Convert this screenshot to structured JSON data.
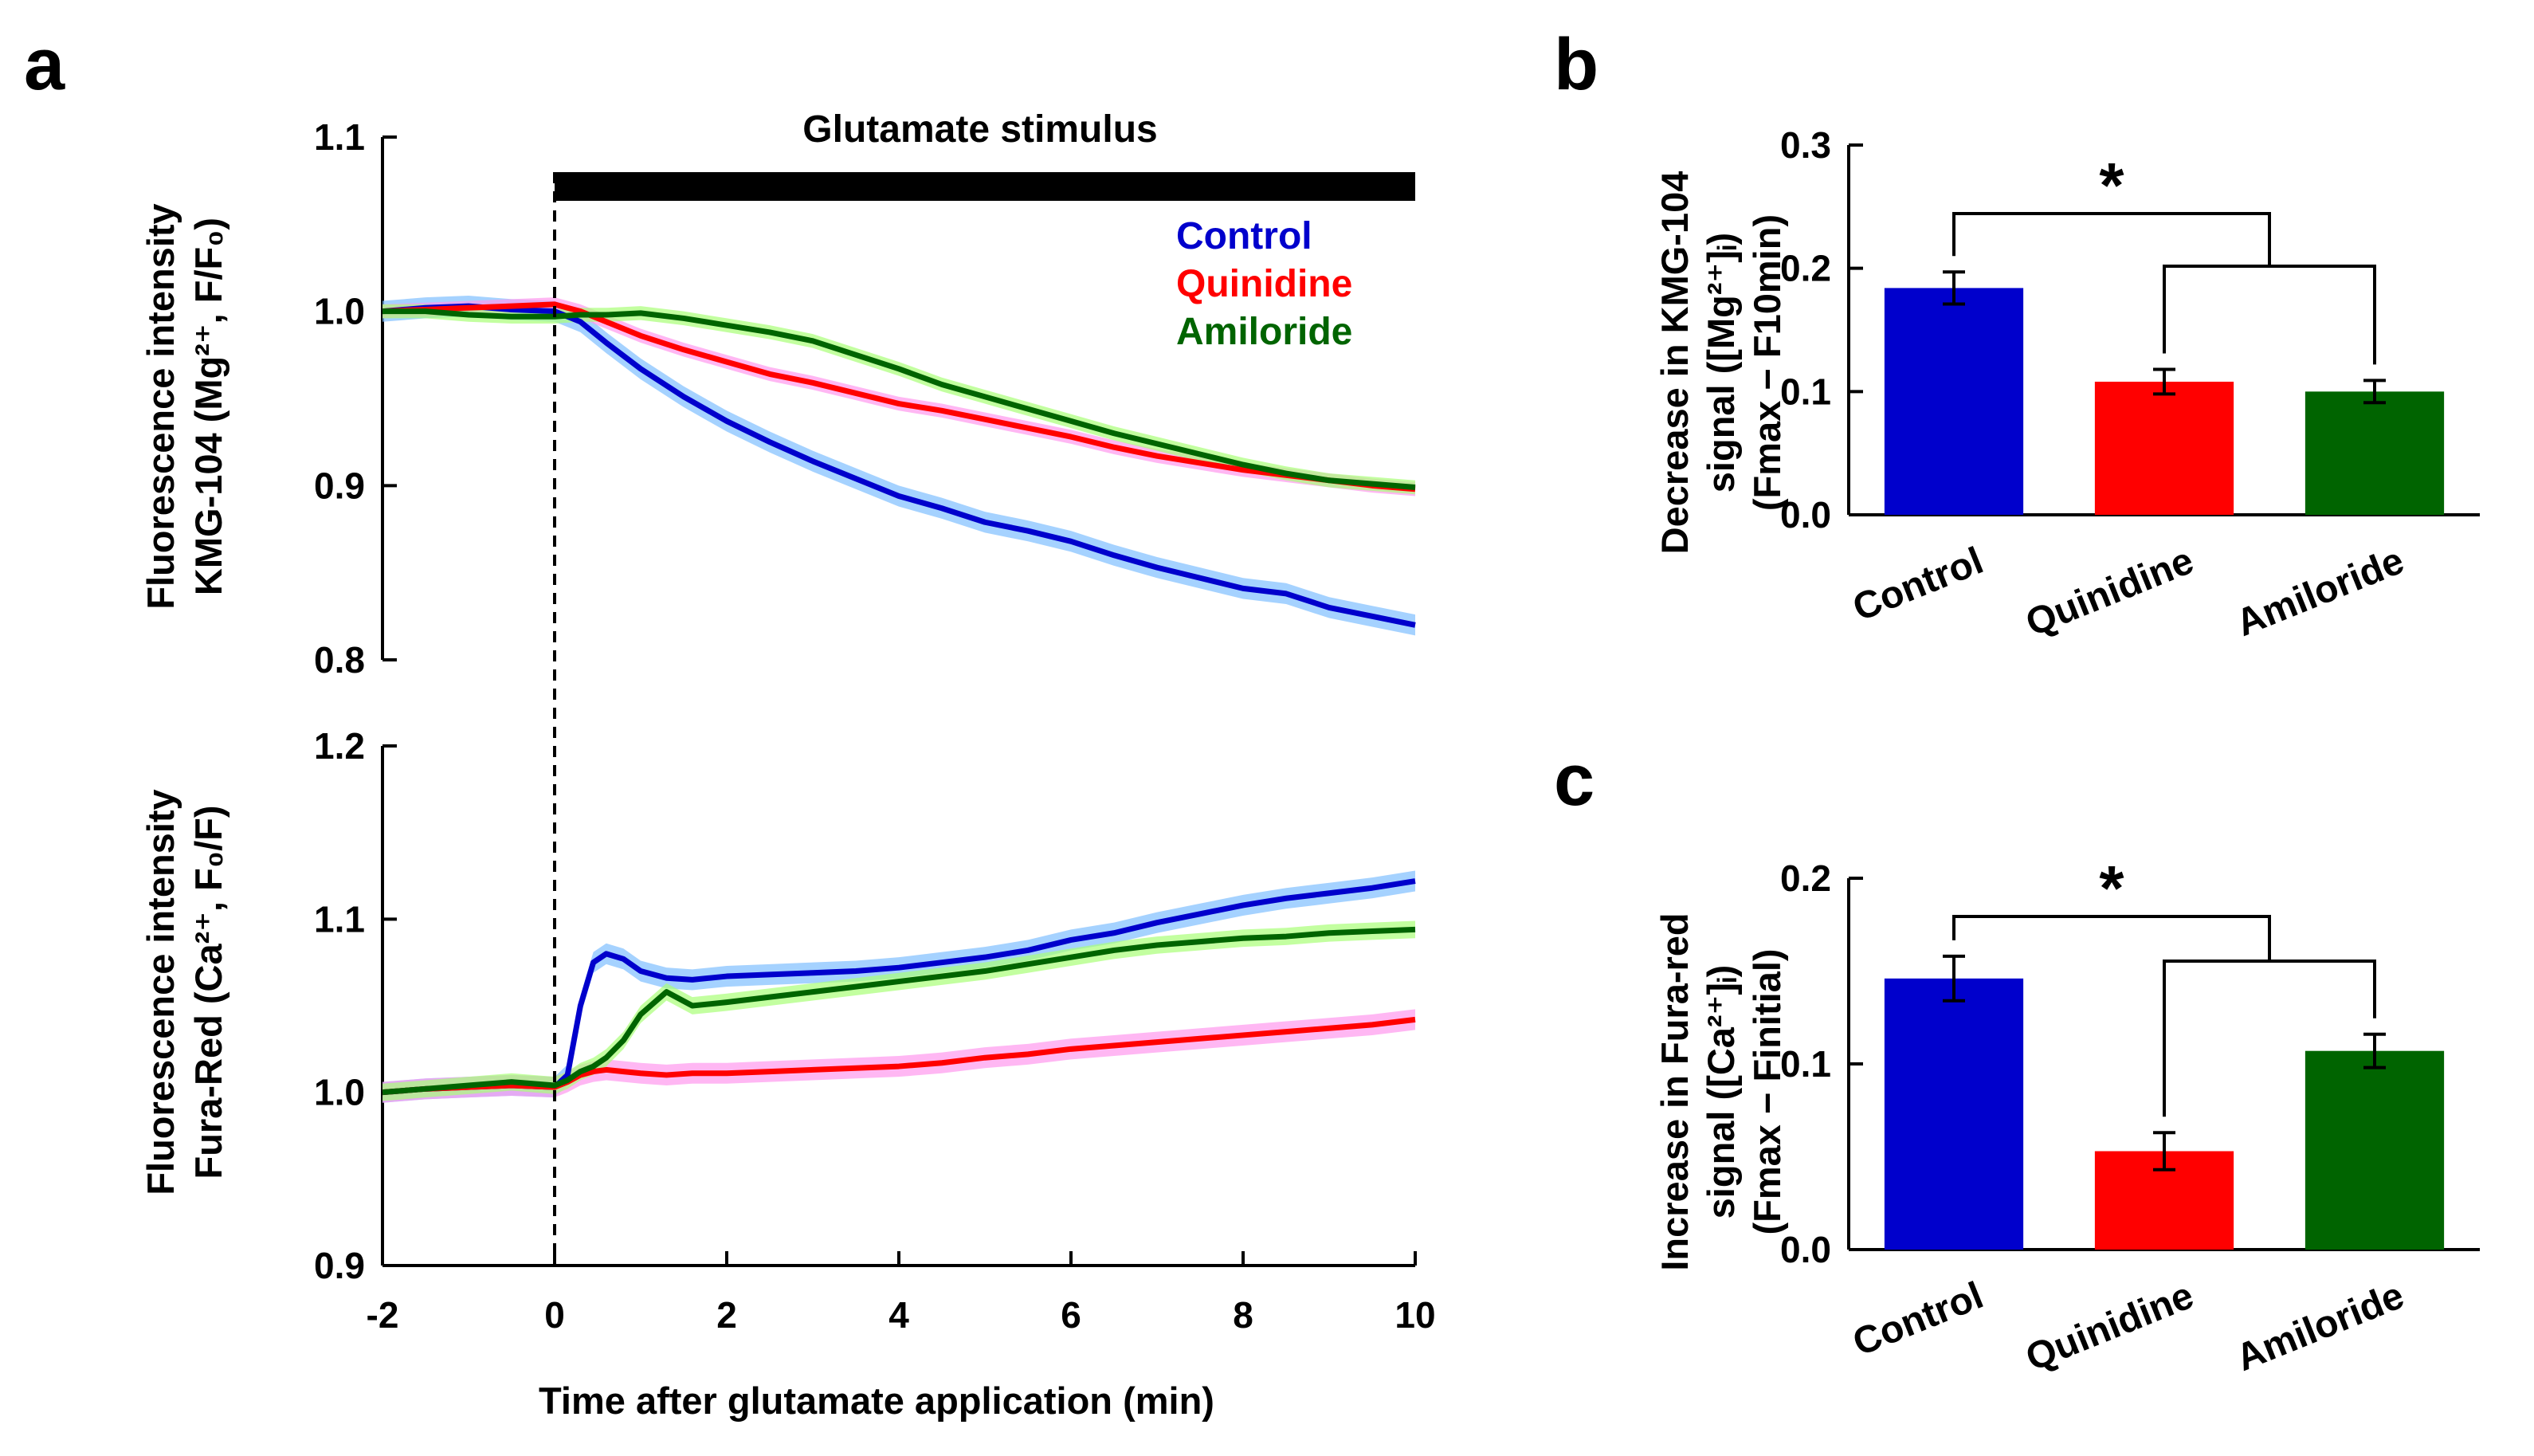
{
  "figure": {
    "panels": [
      "a",
      "b",
      "c"
    ]
  },
  "chart_data": [
    {
      "id": "a-top",
      "type": "line",
      "title": "",
      "stimulus_label": "Glutamate stimulus",
      "stimulus_range": [
        0,
        10
      ],
      "ylabel_line1": "Fluorescence intensity",
      "ylabel_line2": "KMG-104 (Mg²⁺, F/F₀)",
      "xlim": [
        -2,
        10
      ],
      "ylim": [
        0.8,
        1.1
      ],
      "yticks": [
        0.8,
        0.9,
        1.0,
        1.1
      ],
      "ytick_labels": [
        "0.8",
        "0.9",
        "1.0",
        "1.1"
      ],
      "legend": [
        "Control",
        "Quinidine",
        "Amiloride"
      ],
      "legend_position": "top-right",
      "series": [
        {
          "name": "Control",
          "color": "#0000cc",
          "band_color": "#7fbfff",
          "band": 0.006,
          "x": [
            -2,
            -1.5,
            -1,
            -0.5,
            0,
            0.3,
            0.6,
            1,
            1.5,
            2,
            2.5,
            3,
            3.5,
            4,
            4.5,
            5,
            5.5,
            6,
            6.5,
            7,
            7.5,
            8,
            8.5,
            9,
            9.5,
            10
          ],
          "values": [
            1.0,
            1.002,
            1.003,
            1.001,
            1.0,
            0.994,
            0.982,
            0.967,
            0.951,
            0.937,
            0.925,
            0.914,
            0.904,
            0.894,
            0.887,
            0.879,
            0.874,
            0.868,
            0.86,
            0.853,
            0.847,
            0.841,
            0.838,
            0.83,
            0.825,
            0.82
          ]
        },
        {
          "name": "Quinidine",
          "color": "#ff0000",
          "band_color": "#ff99ee",
          "band": 0.004,
          "x": [
            -2,
            -1.5,
            -1,
            -0.5,
            0,
            0.3,
            0.6,
            1,
            1.5,
            2,
            2.5,
            3,
            3.5,
            4,
            4.5,
            5,
            5.5,
            6,
            6.5,
            7,
            7.5,
            8,
            8.5,
            9,
            9.5,
            10
          ],
          "values": [
            1.0,
            1.001,
            1.002,
            1.003,
            1.004,
            1.0,
            0.994,
            0.986,
            0.978,
            0.971,
            0.964,
            0.959,
            0.953,
            0.947,
            0.943,
            0.938,
            0.933,
            0.928,
            0.922,
            0.917,
            0.913,
            0.909,
            0.906,
            0.903,
            0.9,
            0.898
          ]
        },
        {
          "name": "Amiloride",
          "color": "#006400",
          "band_color": "#aaff77",
          "band": 0.004,
          "x": [
            -2,
            -1.5,
            -1,
            -0.5,
            0,
            0.3,
            0.6,
            1,
            1.5,
            2,
            2.5,
            3,
            3.5,
            4,
            4.5,
            5,
            5.5,
            6,
            6.5,
            7,
            7.5,
            8,
            8.5,
            9,
            9.5,
            10
          ],
          "values": [
            1.0,
            1.0,
            0.998,
            0.997,
            0.997,
            0.998,
            0.998,
            0.999,
            0.996,
            0.992,
            0.988,
            0.983,
            0.975,
            0.967,
            0.958,
            0.951,
            0.944,
            0.937,
            0.93,
            0.924,
            0.918,
            0.912,
            0.907,
            0.903,
            0.901,
            0.899
          ]
        }
      ]
    },
    {
      "id": "a-bottom",
      "type": "line",
      "title": "",
      "xlabel": "Time after glutamate application (min)",
      "ylabel_line1": "Fluorescence intensity",
      "ylabel_line2": "Fura-Red (Ca²⁺, F₀/F)",
      "xlim": [
        -2,
        10
      ],
      "ylim": [
        0.9,
        1.2
      ],
      "xticks": [
        -2,
        0,
        2,
        4,
        6,
        8,
        10
      ],
      "xtick_labels": [
        "-2",
        "0",
        "2",
        "4",
        "6",
        "8",
        "10"
      ],
      "yticks": [
        0.9,
        1.0,
        1.1,
        1.2
      ],
      "ytick_labels": [
        "0.9",
        "1.0",
        "1.1",
        "1.2"
      ],
      "series": [
        {
          "name": "Control",
          "color": "#0000cc",
          "band_color": "#7fbfff",
          "band": 0.006,
          "x": [
            -2,
            -1.5,
            -1,
            -0.5,
            0,
            0.15,
            0.3,
            0.45,
            0.6,
            0.8,
            1,
            1.3,
            1.6,
            2,
            2.5,
            3,
            3.5,
            4,
            4.5,
            5,
            5.5,
            6,
            6.5,
            7,
            7.5,
            8,
            8.5,
            9,
            9.5,
            10
          ],
          "values": [
            1.0,
            1.002,
            1.003,
            1.004,
            1.003,
            1.01,
            1.05,
            1.075,
            1.08,
            1.077,
            1.07,
            1.066,
            1.065,
            1.067,
            1.068,
            1.069,
            1.07,
            1.072,
            1.075,
            1.078,
            1.082,
            1.088,
            1.092,
            1.098,
            1.103,
            1.108,
            1.112,
            1.115,
            1.118,
            1.122
          ]
        },
        {
          "name": "Quinidine",
          "color": "#ff0000",
          "band_color": "#ff99ee",
          "band": 0.006,
          "x": [
            -2,
            -1.5,
            -1,
            -0.5,
            0,
            0.15,
            0.3,
            0.45,
            0.6,
            0.8,
            1,
            1.3,
            1.6,
            2,
            2.5,
            3,
            3.5,
            4,
            4.5,
            5,
            5.5,
            6,
            6.5,
            7,
            7.5,
            8,
            8.5,
            9,
            9.5,
            10
          ],
          "values": [
            1.0,
            1.002,
            1.003,
            1.004,
            1.003,
            1.006,
            1.01,
            1.012,
            1.013,
            1.012,
            1.011,
            1.01,
            1.011,
            1.011,
            1.012,
            1.013,
            1.014,
            1.015,
            1.017,
            1.02,
            1.022,
            1.025,
            1.027,
            1.029,
            1.031,
            1.033,
            1.035,
            1.037,
            1.039,
            1.042
          ]
        },
        {
          "name": "Amiloride",
          "color": "#006400",
          "band_color": "#aaff77",
          "band": 0.005,
          "x": [
            -2,
            -1.5,
            -1,
            -0.5,
            0,
            0.15,
            0.3,
            0.45,
            0.6,
            0.8,
            1,
            1.3,
            1.6,
            2,
            2.5,
            3,
            3.5,
            4,
            4.5,
            5,
            5.5,
            6,
            6.5,
            7,
            7.5,
            8,
            8.5,
            9,
            9.5,
            10
          ],
          "values": [
            1.0,
            1.002,
            1.004,
            1.006,
            1.004,
            1.007,
            1.012,
            1.015,
            1.02,
            1.03,
            1.045,
            1.058,
            1.05,
            1.052,
            1.055,
            1.058,
            1.061,
            1.064,
            1.067,
            1.07,
            1.074,
            1.078,
            1.082,
            1.085,
            1.087,
            1.089,
            1.09,
            1.092,
            1.093,
            1.094
          ]
        }
      ]
    },
    {
      "id": "b",
      "type": "bar",
      "ylabel_line1": "Decrease in KMG-104",
      "ylabel_line2": "signal ([Mg²⁺]ᵢ)",
      "ylabel_line3": "(Fmax − F10min)",
      "categories": [
        "Control",
        "Quinidine",
        "Amiloride"
      ],
      "values": [
        0.184,
        0.108,
        0.1
      ],
      "errors": [
        0.013,
        0.01,
        0.009
      ],
      "colors": [
        "#0000cc",
        "#ff0000",
        "#006400"
      ],
      "ylim": [
        0,
        0.3
      ],
      "yticks": [
        0.0,
        0.1,
        0.2,
        0.3
      ],
      "ytick_labels": [
        "0.0",
        "0.1",
        "0.2",
        "0.3"
      ],
      "significance": "*"
    },
    {
      "id": "c",
      "type": "bar",
      "ylabel_line1": "Increase in Fura-red",
      "ylabel_line2": "signal ([Ca²⁺]ᵢ)",
      "ylabel_line3": "(Fmax − Finitial)",
      "categories": [
        "Control",
        "Quinidine",
        "Amiloride"
      ],
      "values": [
        0.146,
        0.053,
        0.107
      ],
      "errors": [
        0.012,
        0.01,
        0.009
      ],
      "colors": [
        "#0000cc",
        "#ff0000",
        "#006400"
      ],
      "ylim": [
        0,
        0.2
      ],
      "yticks": [
        0.0,
        0.1,
        0.2
      ],
      "ytick_labels": [
        "0.0",
        "0.1",
        "0.2"
      ],
      "significance": "*"
    }
  ]
}
